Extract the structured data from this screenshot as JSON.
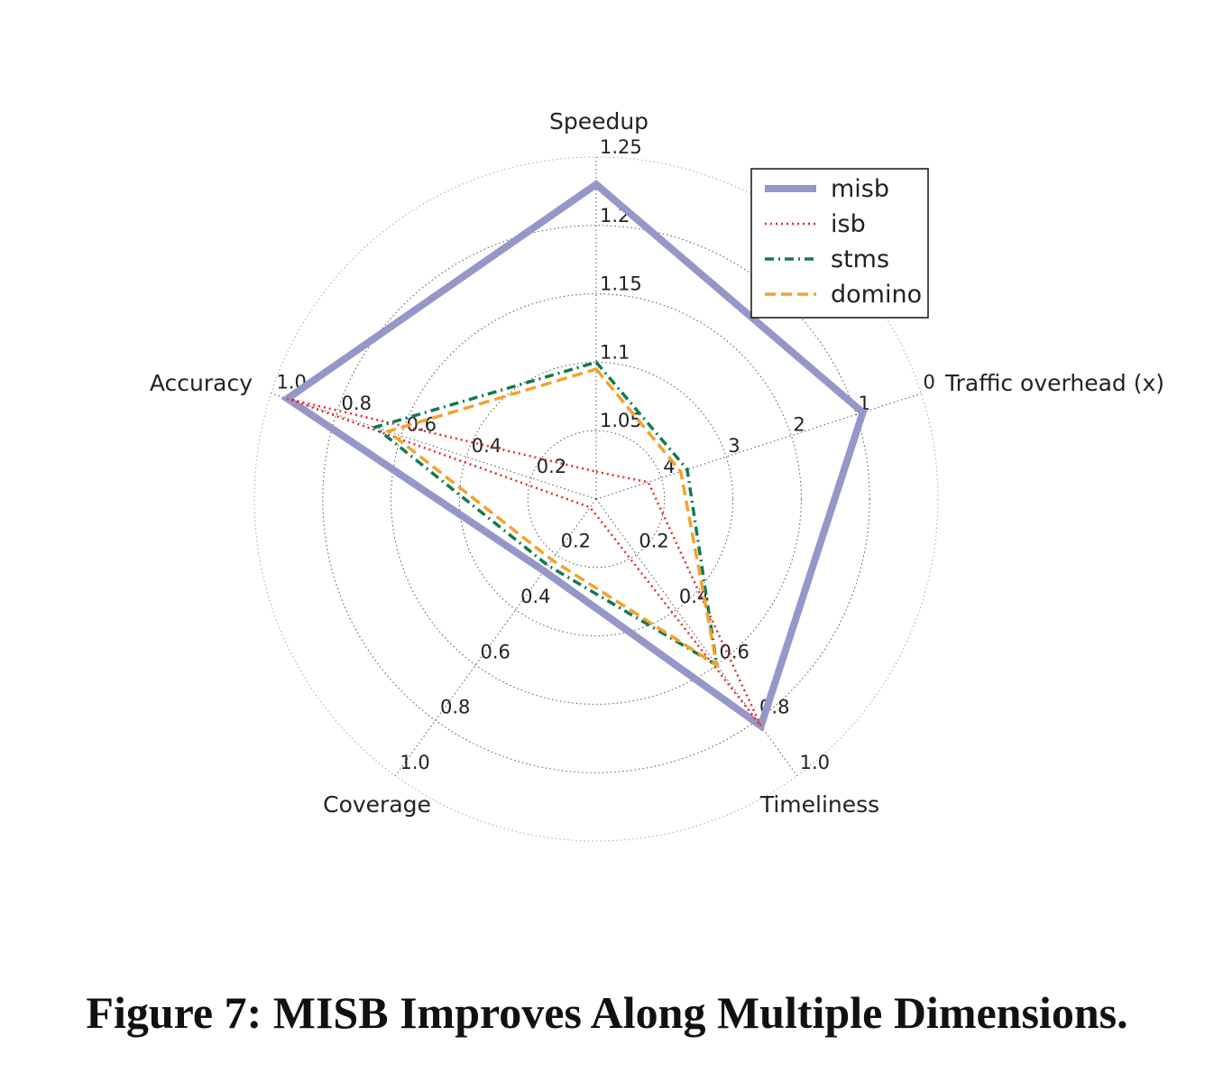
{
  "caption": "Figure 7: MISB Improves Along Multiple Dimensions.",
  "chart_data": {
    "type": "radar",
    "title": "",
    "axes": [
      {
        "name": "Speedup",
        "ticks": [
          "1.05",
          "1.1",
          "1.15",
          "1.2",
          "1.25"
        ],
        "range": [
          1.0,
          1.25
        ]
      },
      {
        "name": "Traffic overhead (x)",
        "ticks": [
          "4",
          "3",
          "2",
          "1",
          "0"
        ],
        "range": [
          5,
          0
        ],
        "inverted": true
      },
      {
        "name": "Timeliness",
        "ticks": [
          "0.2",
          "0.4",
          "0.6",
          "0.8",
          "1.0"
        ],
        "range": [
          0,
          1.0
        ]
      },
      {
        "name": "Coverage",
        "ticks": [
          "0.2",
          "0.4",
          "0.6",
          "0.8",
          "1.0"
        ],
        "range": [
          0,
          1.0
        ]
      },
      {
        "name": "Accuracy",
        "ticks": [
          "0.2",
          "0.4",
          "0.6",
          "0.8",
          "1.0"
        ],
        "range": [
          0,
          1.0
        ]
      }
    ],
    "series": [
      {
        "name": "misb",
        "color": "#9597c9",
        "style": "solid",
        "values": {
          "Speedup": 1.23,
          "Traffic overhead (x)": 0.9,
          "Timeliness": 0.82,
          "Coverage": 0.26,
          "Accuracy": 0.95
        }
      },
      {
        "name": "isb",
        "color": "#e8262a",
        "style": "dotted",
        "values": {
          "Speedup": 1.02,
          "Traffic overhead (x)": 4.2,
          "Timeliness": 0.82,
          "Coverage": 0.03,
          "Accuracy": 0.95
        }
      },
      {
        "name": "stms",
        "color": "#137a4d",
        "style": "dashdot",
        "values": {
          "Speedup": 1.1,
          "Traffic overhead (x)": 3.6,
          "Timeliness": 0.6,
          "Coverage": 0.24,
          "Accuracy": 0.68
        }
      },
      {
        "name": "domino",
        "color": "#f2a22d",
        "style": "dashed",
        "values": {
          "Speedup": 1.095,
          "Traffic overhead (x)": 3.7,
          "Timeliness": 0.6,
          "Coverage": 0.22,
          "Accuracy": 0.64
        }
      }
    ],
    "legend_position": "top-right"
  }
}
